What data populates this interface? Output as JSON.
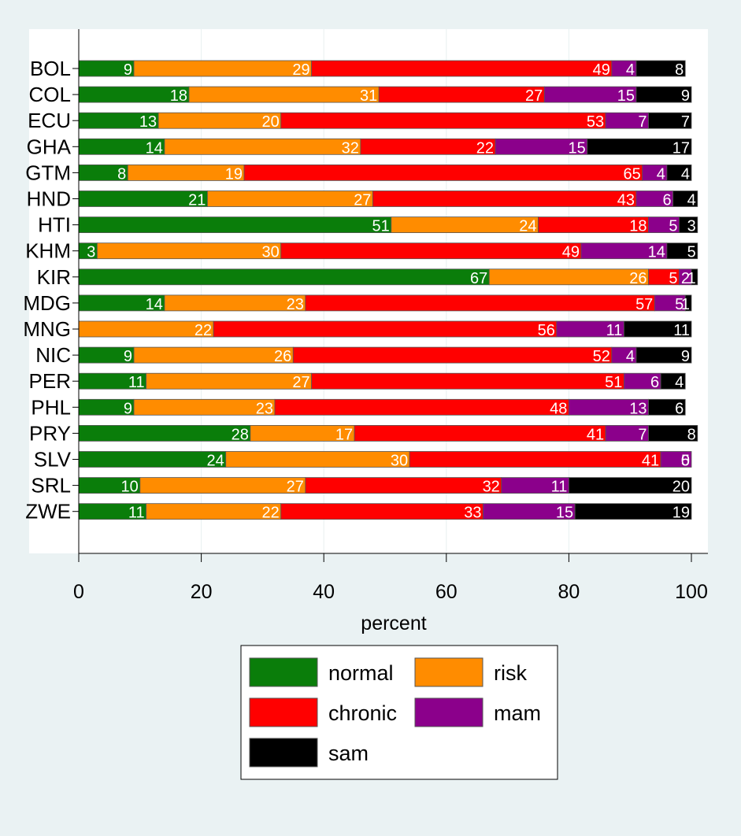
{
  "chart_data": {
    "type": "bar",
    "orientation": "horizontal",
    "stacked": true,
    "title": "",
    "xlabel": "percent",
    "ylabel": "",
    "xlim": [
      0,
      100
    ],
    "xticks": [
      "0",
      "20",
      "40",
      "60",
      "80",
      "100"
    ],
    "grid": true,
    "legend_position": "bottom",
    "categories": [
      "BOL",
      "COL",
      "ECU",
      "GHA",
      "GTM",
      "HND",
      "HTI",
      "KHM",
      "KIR",
      "MDG",
      "MNG",
      "NIC",
      "PER",
      "PHL",
      "PRY",
      "SLV",
      "SRL",
      "ZWE"
    ],
    "series": [
      {
        "name": "normal",
        "color": "#0a7d0a",
        "values": [
          9,
          18,
          13,
          14,
          8,
          21,
          51,
          3,
          67,
          14,
          0,
          9,
          11,
          9,
          28,
          24,
          10,
          11
        ]
      },
      {
        "name": "risk",
        "color": "#ff8c00",
        "values": [
          29,
          31,
          20,
          32,
          19,
          27,
          24,
          30,
          26,
          23,
          22,
          26,
          27,
          23,
          17,
          30,
          27,
          22
        ]
      },
      {
        "name": "chronic",
        "color": "#ff0000",
        "values": [
          49,
          27,
          53,
          22,
          65,
          43,
          18,
          49,
          5,
          57,
          56,
          52,
          51,
          48,
          41,
          41,
          32,
          33
        ]
      },
      {
        "name": "mam",
        "color": "#8b008b",
        "values": [
          4,
          15,
          7,
          15,
          4,
          6,
          5,
          14,
          2,
          5,
          11,
          4,
          6,
          13,
          7,
          5,
          11,
          15
        ]
      },
      {
        "name": "sam",
        "color": "#000000",
        "values": [
          8,
          9,
          7,
          17,
          4,
          4,
          3,
          5,
          1,
          1,
          11,
          9,
          4,
          6,
          8,
          0,
          20,
          19
        ]
      }
    ]
  }
}
